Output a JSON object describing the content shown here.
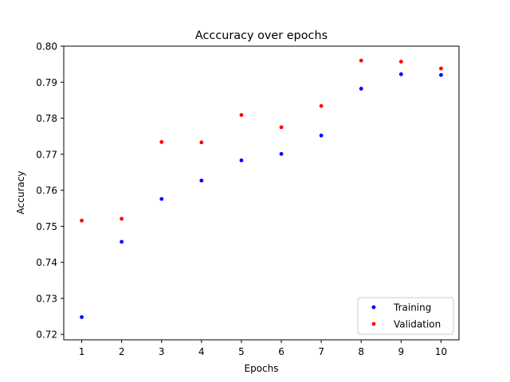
{
  "chart_data": {
    "type": "scatter",
    "title": "Acccuracy over epochs",
    "xlabel": "Epochs",
    "ylabel": "Accuracy",
    "xlim": [
      0.55,
      10.45
    ],
    "ylim": [
      0.7185,
      0.8
    ],
    "x": [
      1,
      2,
      3,
      4,
      5,
      6,
      7,
      8,
      9,
      10
    ],
    "xticks": [
      "1",
      "2",
      "3",
      "4",
      "5",
      "6",
      "7",
      "8",
      "9",
      "10"
    ],
    "yticks": [
      "0.72",
      "0.73",
      "0.74",
      "0.75",
      "0.76",
      "0.77",
      "0.78",
      "0.79",
      "0.80"
    ],
    "grid": false,
    "legend_position": "lower-right",
    "series": [
      {
        "name": "Training",
        "color": "#0000ff",
        "values": [
          0.7248,
          0.7457,
          0.7576,
          0.7627,
          0.7683,
          0.7701,
          0.7752,
          0.7882,
          0.7922,
          0.792
        ]
      },
      {
        "name": "Validation",
        "color": "#ff0000",
        "values": [
          0.7516,
          0.7521,
          0.7734,
          0.7733,
          0.7809,
          0.7775,
          0.7834,
          0.796,
          0.7957,
          0.7938
        ]
      }
    ]
  }
}
